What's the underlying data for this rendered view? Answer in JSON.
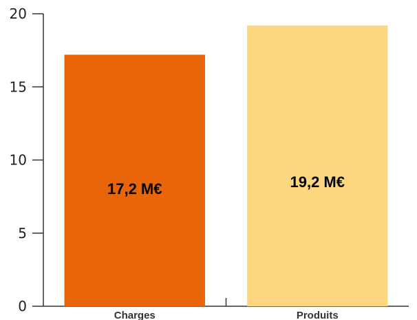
{
  "chart_data": {
    "type": "bar",
    "categories": [
      "Charges",
      "Produits"
    ],
    "values": [
      17.2,
      19.2
    ],
    "data_labels": [
      "17,2 M€",
      "19,2 M€"
    ],
    "colors": [
      "#E8650A",
      "#FCD77F"
    ],
    "ylim": [
      0,
      20
    ],
    "yticks": [
      0,
      5,
      10,
      15,
      20
    ],
    "ytick_labels": [
      "0",
      "5",
      "10",
      "15",
      "20"
    ],
    "title": "",
    "xlabel": "",
    "ylabel": "",
    "grid": false,
    "legend": "none"
  }
}
